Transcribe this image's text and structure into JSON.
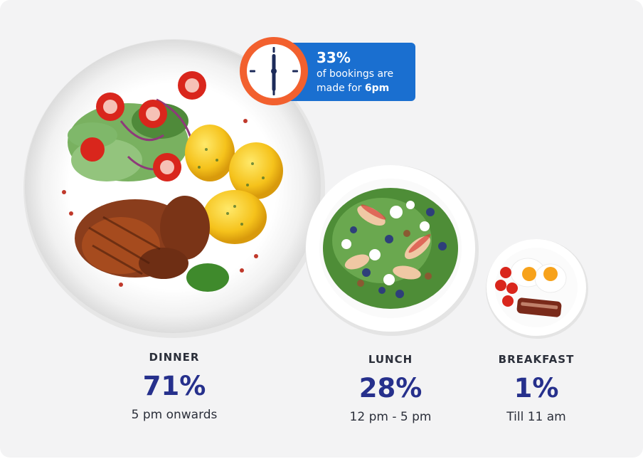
{
  "callout": {
    "percent": "33%",
    "line1": "of bookings are",
    "line2_prefix": "made for ",
    "line2_time": "6pm",
    "icon": "clock-icon"
  },
  "meals": [
    {
      "id": "dinner",
      "name": "DINNER",
      "percent": "71%",
      "time": "5 pm onwards",
      "value": 71
    },
    {
      "id": "lunch",
      "name": "LUNCH",
      "percent": "28%",
      "time": "12 pm - 5 pm",
      "value": 28
    },
    {
      "id": "breakfast",
      "name": "BREAKFAST",
      "percent": "1%",
      "time": "Till 11 am",
      "value": 1
    }
  ],
  "colors": {
    "background": "#f3f3f4",
    "accent": "#26308c",
    "callout": "#1a6fd0",
    "clock_ring": "#f2602e"
  }
}
